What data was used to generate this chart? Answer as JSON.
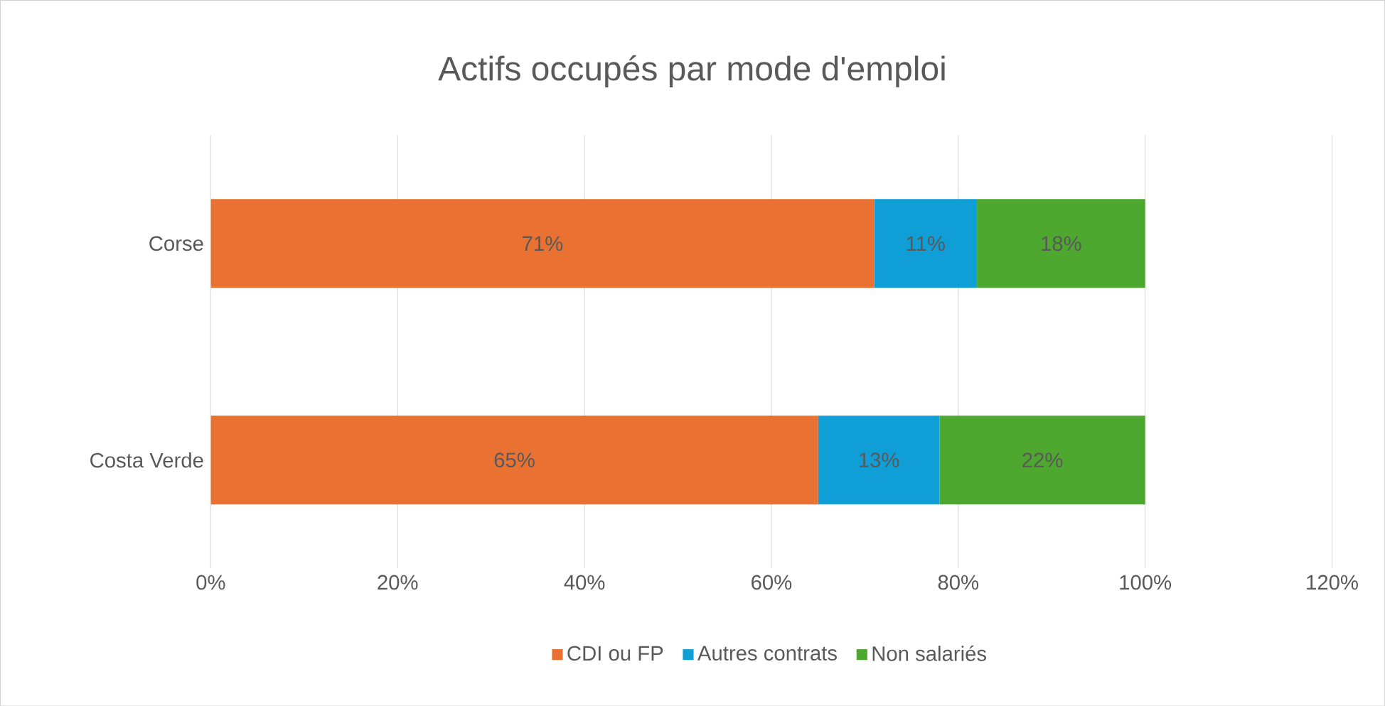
{
  "chart_data": {
    "type": "bar",
    "orientation": "horizontal",
    "stacked": true,
    "title": "Actifs occupés par mode d'emploi",
    "categories": [
      "Corse",
      "Costa Verde"
    ],
    "series": [
      {
        "name": "CDI ou FP",
        "color": "#e97132",
        "values": [
          71,
          65
        ],
        "value_labels": [
          "71%",
          "65%"
        ]
      },
      {
        "name": "Autres contrats",
        "color": "#0f9ed5",
        "values": [
          11,
          13
        ],
        "value_labels": [
          "11%",
          "13%"
        ]
      },
      {
        "name": "Non salariés",
        "color": "#4ea72e",
        "values": [
          18,
          22
        ],
        "value_labels": [
          "18%",
          "22%"
        ]
      }
    ],
    "xlim": [
      0,
      120
    ],
    "xticks": [
      {
        "value": 0,
        "label": "0%"
      },
      {
        "value": 20,
        "label": "20%"
      },
      {
        "value": 40,
        "label": "40%"
      },
      {
        "value": 60,
        "label": "60%"
      },
      {
        "value": 80,
        "label": "80%"
      },
      {
        "value": 100,
        "label": "100%"
      },
      {
        "value": 120,
        "label": "120%"
      }
    ],
    "grid": "x",
    "legend": "bottom"
  }
}
